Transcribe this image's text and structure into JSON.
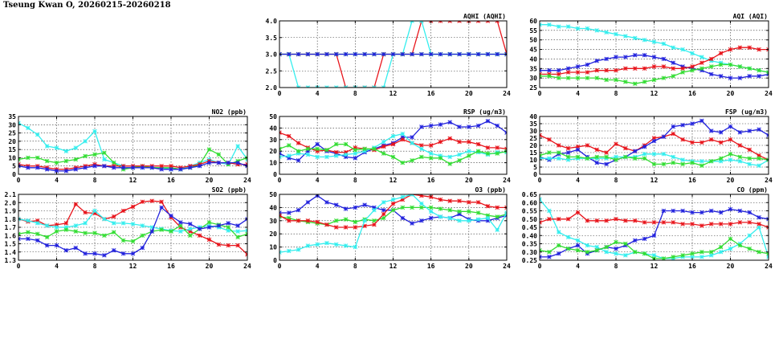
{
  "page": {
    "title": "Tseung Kwan O, 20260215-20260218"
  },
  "colors": {
    "red": "#e8141b",
    "blue": "#2222dd",
    "green": "#33dd33",
    "cyan": "#33eeee",
    "frame": "#000000",
    "grid": "#333333"
  },
  "chart_data": [
    {
      "id": "aqhi",
      "type": "line",
      "title": "AQHI (AQHI)",
      "xlim": [
        0,
        24
      ],
      "xticks": [
        0,
        4,
        8,
        12,
        16,
        20,
        24
      ],
      "ylim": [
        2.0,
        4.0
      ],
      "yticks": [
        2.0,
        2.5,
        3.0,
        3.5,
        4.0
      ],
      "ydec": 1,
      "grid": true,
      "series": [
        {
          "color": "red",
          "values": [
            3,
            3,
            3,
            3,
            3,
            3,
            3,
            2,
            2,
            2,
            2,
            3,
            3,
            3,
            3,
            4,
            4,
            4,
            4,
            4,
            4,
            4,
            4,
            4,
            3
          ]
        },
        {
          "color": "cyan",
          "values": [
            3,
            3,
            2,
            2,
            2,
            2,
            2,
            2,
            2,
            2,
            2,
            2,
            3,
            3,
            4,
            4,
            3,
            3,
            3,
            3,
            3,
            3,
            3,
            3,
            3
          ]
        },
        {
          "color": "green",
          "values": [
            3,
            3,
            3,
            3,
            3,
            3,
            3,
            3,
            3,
            3,
            3,
            3,
            3,
            3,
            3,
            3,
            3,
            3,
            3,
            3,
            3,
            3,
            3,
            3,
            3
          ]
        },
        {
          "color": "blue",
          "values": [
            3,
            3,
            3,
            3,
            3,
            3,
            3,
            3,
            3,
            3,
            3,
            3,
            3,
            3,
            3,
            3,
            3,
            3,
            3,
            3,
            3,
            3,
            3,
            3,
            3
          ]
        }
      ]
    },
    {
      "id": "aqi",
      "type": "line",
      "title": "AQI (AQI)",
      "xlim": [
        0,
        24
      ],
      "xticks": [
        0,
        4,
        8,
        12,
        16,
        20,
        24
      ],
      "ylim": [
        25,
        60
      ],
      "yticks": [
        25,
        30,
        35,
        40,
        45,
        50,
        55,
        60
      ],
      "ydec": 0,
      "grid": true,
      "series": [
        {
          "color": "cyan",
          "values": [
            58,
            58,
            57,
            57,
            56,
            56,
            55,
            54,
            53,
            52,
            51,
            50,
            49,
            48,
            46,
            45,
            43,
            41,
            39,
            38,
            37,
            36,
            35,
            34,
            33
          ]
        },
        {
          "color": "blue",
          "values": [
            34,
            34,
            34,
            35,
            36,
            37,
            39,
            40,
            41,
            41,
            42,
            42,
            41,
            40,
            38,
            36,
            35,
            34,
            32,
            31,
            30,
            30,
            31,
            31,
            32
          ]
        },
        {
          "color": "red",
          "values": [
            32,
            32,
            32,
            33,
            33,
            33,
            34,
            34,
            34,
            35,
            35,
            35,
            36,
            36,
            35,
            35,
            36,
            38,
            40,
            43,
            45,
            46,
            46,
            45,
            45
          ]
        },
        {
          "color": "green",
          "values": [
            31,
            31,
            30,
            30,
            30,
            30,
            30,
            29,
            29,
            28,
            27,
            28,
            29,
            30,
            31,
            33,
            34,
            35,
            36,
            37,
            37,
            36,
            35,
            34,
            33
          ]
        }
      ]
    },
    {
      "id": "no2",
      "type": "line",
      "title": "NO2 (ppb)",
      "xlim": [
        0,
        24
      ],
      "xticks": [
        0,
        4,
        8,
        12,
        16,
        20,
        24
      ],
      "ylim": [
        0,
        35
      ],
      "yticks": [
        0,
        5,
        10,
        15,
        20,
        25,
        30,
        35
      ],
      "ydec": 0,
      "grid": true,
      "series": [
        {
          "color": "cyan",
          "values": [
            31,
            28,
            24,
            17,
            16,
            14,
            16,
            20,
            26,
            9,
            7,
            5,
            5,
            4,
            4,
            4,
            3,
            3,
            5,
            7,
            9,
            7,
            6,
            17,
            9
          ]
        },
        {
          "color": "green",
          "values": [
            9,
            10,
            10,
            8,
            7,
            8,
            9,
            11,
            12,
            13,
            7,
            3,
            4,
            5,
            4,
            4,
            4,
            3,
            4,
            6,
            15,
            12,
            6,
            8,
            10
          ]
        },
        {
          "color": "red",
          "values": [
            6,
            5,
            5,
            4,
            3,
            3,
            4,
            5,
            6,
            5,
            5,
            5,
            5,
            5,
            5,
            5,
            5,
            4,
            5,
            6,
            8,
            7,
            7,
            6,
            6
          ]
        },
        {
          "color": "blue",
          "values": [
            5,
            4,
            4,
            3,
            2,
            2,
            3,
            4,
            5,
            5,
            4,
            4,
            4,
            4,
            4,
            3,
            3,
            3,
            4,
            5,
            7,
            7,
            7,
            7,
            5
          ]
        }
      ]
    },
    {
      "id": "rsp",
      "type": "line",
      "title": "RSP (ug/m3)",
      "xlim": [
        0,
        24
      ],
      "xticks": [
        0,
        4,
        8,
        12,
        16,
        20,
        24
      ],
      "ylim": [
        0,
        50
      ],
      "yticks": [
        0,
        10,
        20,
        30,
        40,
        50
      ],
      "ydec": 0,
      "grid": true,
      "series": [
        {
          "color": "blue",
          "values": [
            18,
            14,
            12,
            20,
            26,
            20,
            18,
            15,
            14,
            19,
            22,
            25,
            27,
            32,
            32,
            41,
            42,
            43,
            45,
            41,
            41,
            42,
            46,
            42,
            36
          ]
        },
        {
          "color": "red",
          "values": [
            36,
            33,
            27,
            23,
            20,
            21,
            19,
            19,
            23,
            22,
            21,
            24,
            26,
            30,
            27,
            25,
            25,
            28,
            31,
            28,
            28,
            26,
            23,
            23,
            22
          ]
        },
        {
          "color": "cyan",
          "values": [
            15,
            16,
            18,
            17,
            15,
            15,
            16,
            17,
            18,
            20,
            23,
            28,
            33,
            35,
            27,
            22,
            18,
            16,
            15,
            17,
            20,
            19,
            17,
            19,
            19
          ]
        },
        {
          "color": "green",
          "values": [
            22,
            25,
            20,
            22,
            22,
            21,
            26,
            26,
            21,
            22,
            22,
            18,
            15,
            10,
            12,
            15,
            14,
            14,
            9,
            12,
            16,
            20,
            18,
            18,
            20
          ]
        }
      ]
    },
    {
      "id": "fsp",
      "type": "line",
      "title": "FSP (ug/m3)",
      "xlim": [
        0,
        24
      ],
      "xticks": [
        0,
        4,
        8,
        12,
        16,
        20,
        24
      ],
      "ylim": [
        0,
        40
      ],
      "yticks": [
        0,
        5,
        10,
        15,
        20,
        25,
        30,
        35,
        40
      ],
      "ydec": 0,
      "grid": true,
      "series": [
        {
          "color": "red",
          "values": [
            27,
            24,
            20,
            18,
            19,
            20,
            17,
            15,
            21,
            18,
            16,
            20,
            25,
            26,
            28,
            24,
            22,
            22,
            24,
            22,
            24,
            20,
            17,
            13,
            10
          ]
        },
        {
          "color": "blue",
          "values": [
            12,
            10,
            14,
            15,
            17,
            12,
            8,
            7,
            10,
            12,
            16,
            19,
            23,
            26,
            33,
            34,
            35,
            37,
            30,
            29,
            33,
            29,
            30,
            31,
            27
          ]
        },
        {
          "color": "cyan",
          "values": [
            11,
            11,
            11,
            10,
            11,
            11,
            11,
            11,
            12,
            12,
            12,
            14,
            14,
            14,
            12,
            10,
            9,
            9,
            9,
            9,
            10,
            9,
            7,
            6,
            10
          ]
        },
        {
          "color": "green",
          "values": [
            13,
            15,
            15,
            12,
            12,
            11,
            12,
            12,
            10,
            12,
            11,
            11,
            7,
            7,
            8,
            7,
            8,
            6,
            9,
            11,
            14,
            12,
            11,
            11,
            10
          ]
        }
      ]
    },
    {
      "id": "so2",
      "type": "line",
      "title": "SO2 (ppb)",
      "xlim": [
        0,
        24
      ],
      "xticks": [
        0,
        4,
        8,
        12,
        16,
        20,
        24
      ],
      "ylim": [
        1.3,
        2.1
      ],
      "yticks": [
        1.3,
        1.4,
        1.5,
        1.6,
        1.7,
        1.8,
        1.9,
        2.0,
        2.1
      ],
      "ydec": 1,
      "grid": true,
      "series": [
        {
          "color": "red",
          "values": [
            1.8,
            1.77,
            1.78,
            1.72,
            1.73,
            1.75,
            1.98,
            1.88,
            1.87,
            1.8,
            1.83,
            1.9,
            1.95,
            2.01,
            2.02,
            2.01,
            1.82,
            1.7,
            1.65,
            1.6,
            1.55,
            1.49,
            1.48,
            1.48,
            1.37
          ]
        },
        {
          "color": "cyan",
          "values": [
            1.8,
            1.78,
            1.75,
            1.72,
            1.7,
            1.7,
            1.72,
            1.75,
            1.9,
            1.8,
            1.75,
            1.75,
            1.74,
            1.72,
            1.7,
            1.68,
            1.66,
            1.65,
            1.68,
            1.7,
            1.72,
            1.7,
            1.66,
            1.65,
            1.66
          ]
        },
        {
          "color": "green",
          "values": [
            1.62,
            1.64,
            1.62,
            1.58,
            1.65,
            1.67,
            1.65,
            1.63,
            1.63,
            1.6,
            1.64,
            1.54,
            1.53,
            1.6,
            1.65,
            1.67,
            1.65,
            1.72,
            1.6,
            1.68,
            1.76,
            1.73,
            1.7,
            1.58,
            1.62
          ]
        },
        {
          "color": "blue",
          "values": [
            1.56,
            1.56,
            1.54,
            1.48,
            1.48,
            1.42,
            1.45,
            1.38,
            1.38,
            1.36,
            1.42,
            1.38,
            1.38,
            1.45,
            1.65,
            1.94,
            1.84,
            1.76,
            1.74,
            1.68,
            1.7,
            1.72,
            1.75,
            1.72,
            1.8
          ]
        }
      ]
    },
    {
      "id": "o3",
      "type": "line",
      "title": "O3 (ppb)",
      "xlim": [
        0,
        24
      ],
      "xticks": [
        0,
        4,
        8,
        12,
        16,
        20,
        24
      ],
      "ylim": [
        0,
        50
      ],
      "yticks": [
        0,
        10,
        20,
        30,
        40,
        50
      ],
      "ydec": 0,
      "grid": true,
      "series": [
        {
          "color": "blue",
          "values": [
            36,
            36,
            38,
            44,
            49,
            44,
            42,
            39,
            40,
            42,
            40,
            38,
            38,
            32,
            28,
            30,
            32,
            33,
            32,
            35,
            31,
            30,
            30,
            32,
            34
          ]
        },
        {
          "color": "green",
          "values": [
            33,
            32,
            30,
            29,
            28,
            27,
            30,
            31,
            29,
            31,
            30,
            32,
            38,
            40,
            40,
            40,
            40,
            39,
            38,
            37,
            37,
            36,
            34,
            33,
            35
          ]
        },
        {
          "color": "red",
          "values": [
            34,
            30,
            30,
            30,
            29,
            27,
            25,
            25,
            25,
            26,
            27,
            35,
            43,
            46,
            50,
            49,
            48,
            46,
            45,
            45,
            44,
            44,
            41,
            40,
            40
          ]
        },
        {
          "color": "cyan",
          "values": [
            6,
            7,
            8,
            11,
            12,
            13,
            12,
            11,
            10,
            30,
            38,
            44,
            46,
            48,
            50,
            43,
            37,
            33,
            32,
            30,
            30,
            31,
            32,
            23,
            36
          ]
        }
      ]
    },
    {
      "id": "co",
      "type": "line",
      "title": "CO (ppm)",
      "xlim": [
        0,
        24
      ],
      "xticks": [
        0,
        4,
        8,
        12,
        16,
        20,
        24
      ],
      "ylim": [
        0.25,
        0.65
      ],
      "yticks": [
        0.25,
        0.3,
        0.35,
        0.4,
        0.45,
        0.5,
        0.55,
        0.6,
        0.65
      ],
      "ydec": 2,
      "grid": true,
      "series": [
        {
          "color": "cyan",
          "values": [
            0.62,
            0.55,
            0.42,
            0.39,
            0.37,
            0.34,
            0.33,
            0.3,
            0.29,
            0.28,
            0.3,
            0.29,
            0.28,
            0.26,
            0.26,
            0.27,
            0.27,
            0.27,
            0.28,
            0.3,
            0.32,
            0.35,
            0.4,
            0.45,
            0.27
          ]
        },
        {
          "color": "red",
          "values": [
            0.48,
            0.5,
            0.5,
            0.5,
            0.54,
            0.49,
            0.49,
            0.49,
            0.5,
            0.49,
            0.49,
            0.48,
            0.48,
            0.48,
            0.48,
            0.47,
            0.47,
            0.46,
            0.47,
            0.47,
            0.47,
            0.48,
            0.48,
            0.47,
            0.45
          ]
        },
        {
          "color": "blue",
          "values": [
            0.27,
            0.27,
            0.29,
            0.32,
            0.34,
            0.29,
            0.31,
            0.33,
            0.32,
            0.34,
            0.37,
            0.38,
            0.4,
            0.55,
            0.55,
            0.55,
            0.54,
            0.54,
            0.55,
            0.54,
            0.56,
            0.55,
            0.54,
            0.51,
            0.5
          ]
        },
        {
          "color": "green",
          "values": [
            0.31,
            0.3,
            0.34,
            0.32,
            0.31,
            0.3,
            0.31,
            0.33,
            0.36,
            0.35,
            0.3,
            0.29,
            0.26,
            0.26,
            0.27,
            0.28,
            0.29,
            0.3,
            0.3,
            0.33,
            0.38,
            0.34,
            0.32,
            0.3,
            0.29
          ]
        }
      ]
    }
  ]
}
